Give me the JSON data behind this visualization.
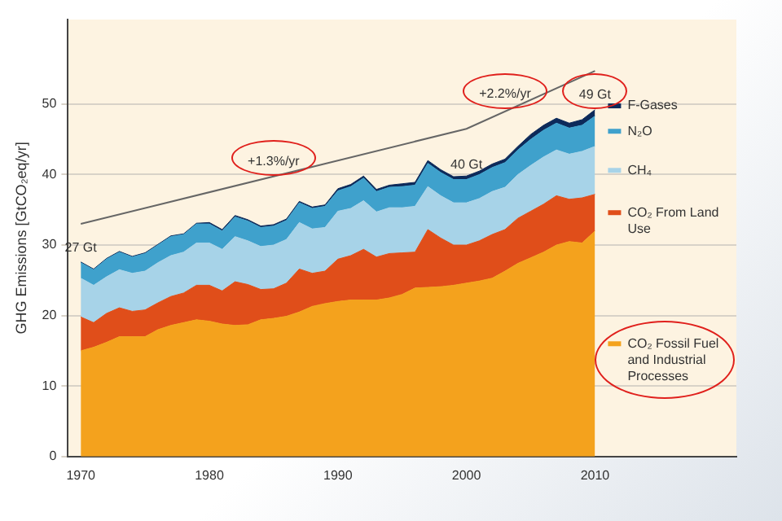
{
  "chart_data": {
    "type": "area",
    "stacked": true,
    "ylabel": "GHG Emissions [GtCO₂eq/yr]",
    "x": [
      1970,
      1971,
      1972,
      1973,
      1974,
      1975,
      1976,
      1977,
      1978,
      1979,
      1980,
      1981,
      1982,
      1983,
      1984,
      1985,
      1986,
      1987,
      1988,
      1989,
      1990,
      1991,
      1992,
      1993,
      1994,
      1995,
      1996,
      1997,
      1998,
      1999,
      2000,
      2001,
      2002,
      2003,
      2004,
      2005,
      2006,
      2007,
      2008,
      2009,
      2010
    ],
    "xlim": [
      1969,
      2021
    ],
    "xticks": [
      1970,
      1980,
      1990,
      2000,
      2010
    ],
    "ylim": [
      0,
      62
    ],
    "yticks": [
      0,
      10,
      20,
      30,
      40,
      50
    ],
    "grid": "y",
    "legend": "right",
    "series": [
      {
        "name": "CO₂ Fossil Fuel and Industrial Processes",
        "color": "#f4a21d",
        "values": [
          15,
          15.5,
          16.2,
          17,
          17,
          17,
          18,
          18.6,
          19,
          19.4,
          19.2,
          18.8,
          18.6,
          18.7,
          19.4,
          19.6,
          19.9,
          20.5,
          21.3,
          21.7,
          22,
          22.2,
          22.2,
          22.2,
          22.5,
          23,
          23.9,
          24,
          24.1,
          24.3,
          24.6,
          24.9,
          25.3,
          26.3,
          27.4,
          28.2,
          29,
          30,
          30.5,
          30.3,
          32
        ]
      },
      {
        "name": "CO₂ From Land Use",
        "color": "#e04e1a",
        "values": [
          4.8,
          3.5,
          4.1,
          4.1,
          3.6,
          3.8,
          3.8,
          4.1,
          4.2,
          4.9,
          5.1,
          4.7,
          6.2,
          5.7,
          4.3,
          4.2,
          4.7,
          6.1,
          4.7,
          4.6,
          6,
          6.3,
          7.2,
          6.1,
          6.3,
          5.9,
          5.1,
          8.2,
          6.9,
          5.7,
          5.4,
          5.7,
          6.2,
          5.9,
          6.4,
          6.6,
          6.8,
          7,
          6,
          6.4,
          5.2
        ]
      },
      {
        "name": "CH₄",
        "color": "#a7d3e8",
        "values": [
          5.5,
          5.3,
          5.2,
          5.4,
          5.4,
          5.5,
          5.7,
          5.8,
          5.8,
          6,
          6,
          5.9,
          6.4,
          6.2,
          6.1,
          6.2,
          6.2,
          6.6,
          6.3,
          6.2,
          6.8,
          6.7,
          6.9,
          6.4,
          6.5,
          6.4,
          6.5,
          6.1,
          6,
          6,
          6,
          6,
          6.1,
          6,
          6.2,
          6.5,
          6.7,
          6.5,
          6.4,
          6.6,
          6.8
        ]
      },
      {
        "name": "N₂O",
        "color": "#3fa1cc",
        "values": [
          2.2,
          2.2,
          2.5,
          2.5,
          2.3,
          2.5,
          2.5,
          2.7,
          2.5,
          2.7,
          2.7,
          2.6,
          2.8,
          2.8,
          2.7,
          2.7,
          2.7,
          2.8,
          2.9,
          3,
          2.9,
          3.1,
          3.2,
          2.9,
          2.9,
          3,
          3,
          3.3,
          3.3,
          3.3,
          3.3,
          3.4,
          3.4,
          3.5,
          3.5,
          3.7,
          3.8,
          3.8,
          3.7,
          3.7,
          4.3
        ]
      },
      {
        "name": "F-Gases",
        "color": "#0d2a5a",
        "values": [
          0.1,
          0.1,
          0.1,
          0.1,
          0.1,
          0.1,
          0.1,
          0.1,
          0.1,
          0.1,
          0.2,
          0.2,
          0.2,
          0.2,
          0.2,
          0.2,
          0.2,
          0.2,
          0.2,
          0.2,
          0.3,
          0.3,
          0.3,
          0.3,
          0.3,
          0.4,
          0.4,
          0.4,
          0.4,
          0.4,
          0.5,
          0.5,
          0.5,
          0.5,
          0.5,
          0.7,
          0.7,
          0.7,
          0.7,
          0.8,
          0.9
        ]
      },
      {
        "type": "line",
        "color": "#666666",
        "x": [
          1970,
          2000,
          2010
        ],
        "values": [
          33,
          46.5,
          54.7
        ]
      }
    ],
    "annotations": [
      {
        "text": "27 Gt",
        "x": 1970,
        "y": 27.5
      },
      {
        "text": "40 Gt",
        "x": 2000,
        "y": 39.3
      },
      {
        "text": "49 Gt",
        "x": 2010,
        "y": 49.2
      },
      {
        "text": "+1.3%/yr",
        "x": 1985,
        "y": 39.75
      },
      {
        "text": "+2.2%/yr",
        "x": 2003,
        "y": 49.3
      }
    ]
  }
}
